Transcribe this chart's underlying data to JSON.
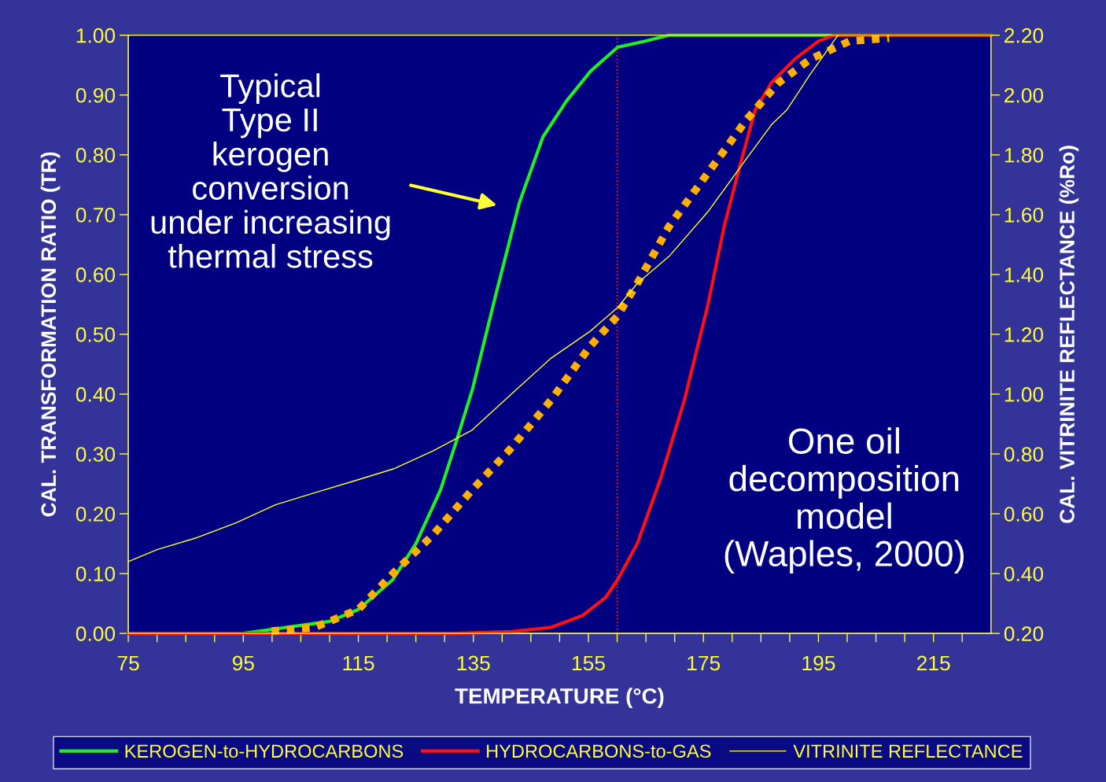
{
  "chart_data": {
    "type": "line",
    "xlabel": "TEMPERATURE (°C)",
    "ylabel": "CAL. TRANSFORMATION RATIO (TR)",
    "y2label": "CAL. VITRINITE REFLECTANCE (%Ro)",
    "xlim": [
      75,
      225
    ],
    "ylim": [
      0,
      1
    ],
    "y2lim": [
      0.2,
      2.2
    ],
    "xticks": [
      75,
      {
        "value": 80,
        "label": null
      },
      {
        "value": 85,
        "label": null
      },
      {
        "value": 90,
        "label": null
      },
      95,
      {
        "value": 100,
        "label": null
      },
      {
        "value": 105,
        "label": null
      },
      {
        "value": 110,
        "label": null
      },
      115,
      {
        "value": 120,
        "label": null
      },
      {
        "value": 125,
        "label": null
      },
      {
        "value": 130,
        "label": null
      },
      135,
      {
        "value": 140,
        "label": null
      },
      {
        "value": 145,
        "label": null
      },
      {
        "value": 150,
        "label": null
      },
      155,
      {
        "value": 160,
        "label": null
      },
      {
        "value": 165,
        "label": null
      },
      {
        "value": 170,
        "label": null
      },
      175,
      {
        "value": 180,
        "label": null
      },
      {
        "value": 185,
        "label": null
      },
      {
        "value": 190,
        "label": null
      },
      195,
      {
        "value": 200,
        "label": null
      },
      {
        "value": 205,
        "label": null
      },
      {
        "value": 210,
        "label": null
      },
      215,
      {
        "value": 220,
        "label": null
      }
    ],
    "yticks": [
      {
        "value": 0,
        "label": "0.00"
      },
      {
        "value": 0.1,
        "label": "0.10"
      },
      {
        "value": 0.2,
        "label": "0.20"
      },
      {
        "value": 0.3,
        "label": "0.30"
      },
      {
        "value": 0.4,
        "label": "0.40"
      },
      {
        "value": 0.5,
        "label": "0.50"
      },
      {
        "value": 0.6,
        "label": "0.60"
      },
      {
        "value": 0.7,
        "label": "0.70"
      },
      {
        "value": 0.8,
        "label": "0.80"
      },
      {
        "value": 0.9,
        "label": "0.90"
      },
      {
        "value": 1,
        "label": "1.00"
      }
    ],
    "y2ticks": [
      {
        "value": 0.2,
        "label": "0.20"
      },
      {
        "value": 0.4,
        "label": "0.40"
      },
      {
        "value": 0.6,
        "label": "0.60"
      },
      {
        "value": 0.8,
        "label": "0.80"
      },
      {
        "value": 1.0,
        "label": "1.00"
      },
      {
        "value": 1.2,
        "label": "1.20"
      },
      {
        "value": 1.4,
        "label": "1.40"
      },
      {
        "value": 1.6,
        "label": "1.60"
      },
      {
        "value": 1.8,
        "label": "1.80"
      },
      {
        "value": 2.0,
        "label": "2.00"
      },
      {
        "value": 2.2,
        "label": "2.20"
      }
    ],
    "series": [
      {
        "name": "KEROGEN-to-HYDROCARBONS",
        "color": "#22ee22",
        "line_style": "solid",
        "x": [
          95,
          110,
          115,
          121,
          125,
          129.3,
          132,
          134.9,
          139,
          143,
          147.1,
          151.2,
          155.4,
          160.1,
          164.9,
          169,
          225
        ],
        "values": [
          0,
          0.02,
          0.04,
          0.09,
          0.15,
          0.24,
          0.32,
          0.41,
          0.57,
          0.72,
          0.83,
          0.89,
          0.94,
          0.98,
          0.99,
          1.0,
          1.0
        ]
      },
      {
        "name": "HYDROCARBONS-to-GAS",
        "color": "#ff1111",
        "line_style": "solid",
        "x": [
          75,
          132,
          141.6,
          148.5,
          154,
          158,
          160.1,
          163.5,
          167.6,
          171.7,
          175.8,
          178.6,
          181.3,
          184,
          186.8,
          190.9,
          195,
          197.7,
          225
        ],
        "values": [
          0,
          0,
          0.003,
          0.01,
          0.03,
          0.06,
          0.09,
          0.15,
          0.26,
          0.39,
          0.55,
          0.68,
          0.78,
          0.875,
          0.92,
          0.96,
          0.99,
          1.0,
          1.0
        ]
      },
      {
        "name": "VITRINITE REFLECTANCE",
        "color": "#ffff22",
        "line_style": "solid",
        "axis": "y2",
        "x": [
          75,
          80,
          86.9,
          93.8,
          100.6,
          107.4,
          114.3,
          121.1,
          128,
          134.8,
          141.6,
          148.5,
          155.3,
          160.1,
          163.5,
          169,
          175.8,
          182.6,
          186.8,
          189.5,
          193.6,
          198.4
        ],
        "values": [
          0.44,
          0.48,
          0.52,
          0.57,
          0.63,
          0.67,
          0.71,
          0.75,
          0.81,
          0.88,
          1.0,
          1.12,
          1.21,
          1.29,
          1.37,
          1.46,
          1.61,
          1.79,
          1.9,
          1.95,
          2.07,
          2.2
        ]
      },
      {
        "color": "#ffb000",
        "line_style": "dotted",
        "x": [
          99.9,
          107.4,
          115,
          121,
          128,
          134.8,
          141.6,
          148.5,
          155.3,
          160,
          163.5,
          169,
          175.8,
          182.6,
          188,
          193.6,
          200.4,
          207.3
        ],
        "values": [
          0.004,
          0.01,
          0.04,
          0.1,
          0.165,
          0.24,
          0.31,
          0.39,
          0.48,
          0.53,
          0.585,
          0.68,
          0.77,
          0.86,
          0.92,
          0.96,
          0.99,
          0.995
        ]
      }
    ],
    "ref_lines": [
      {
        "axis": "x",
        "value": 160,
        "color": "#ff2222",
        "line_style": "dotted"
      }
    ],
    "annotations": [
      "Typical\nType II\nkerogen\nconversion\nunder increasing\nthermal stress",
      "One oil\ndecomposition\nmodel\n(Waples, 2000)"
    ],
    "legend": "bottom",
    "grid": false
  }
}
